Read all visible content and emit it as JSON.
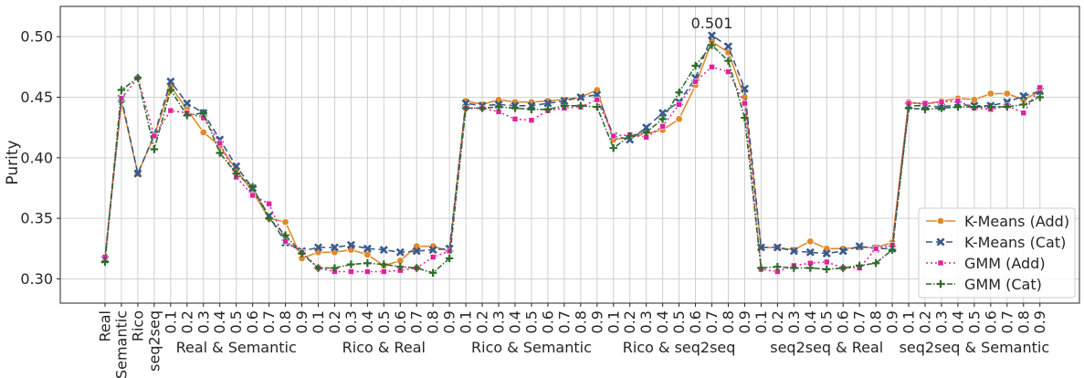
{
  "chart_data": {
    "type": "line",
    "ylabel": "Purity",
    "xlabel": "",
    "ylim": [
      0.28,
      0.525
    ],
    "yticks": [
      0.3,
      0.35,
      0.4,
      0.45,
      0.5
    ],
    "ytick_labels": [
      "0.30",
      "0.35",
      "0.40",
      "0.45",
      "0.50"
    ],
    "grid": true,
    "legend_position": "lower-right",
    "categories": [
      "Real",
      "Semantic",
      "Rico",
      "seq2seq",
      "0.1",
      "0.2",
      "0.3",
      "0.4",
      "0.5",
      "0.6",
      "0.7",
      "0.8",
      "0.9",
      "0.1",
      "0.2",
      "0.3",
      "0.4",
      "0.5",
      "0.6",
      "0.7",
      "0.8",
      "0.9",
      "0.1",
      "0.2",
      "0.3",
      "0.4",
      "0.5",
      "0.6",
      "0.7",
      "0.8",
      "0.9",
      "0.1",
      "0.2",
      "0.3",
      "0.4",
      "0.5",
      "0.6",
      "0.7",
      "0.8",
      "0.9",
      "0.1",
      "0.2",
      "0.3",
      "0.4",
      "0.5",
      "0.6",
      "0.7",
      "0.8",
      "0.9",
      "0.1",
      "0.2",
      "0.3",
      "0.4",
      "0.5",
      "0.6",
      "0.7",
      "0.8",
      "0.9"
    ],
    "group_labels": [
      {
        "label": "Real & Semantic",
        "start": 4,
        "end": 12
      },
      {
        "label": "Rico & Real",
        "start": 13,
        "end": 21
      },
      {
        "label": "Rico & Semantic",
        "start": 22,
        "end": 30
      },
      {
        "label": "Rico & seq2seq",
        "start": 31,
        "end": 39
      },
      {
        "label": "seq2seq & Real",
        "start": 40,
        "end": 48
      },
      {
        "label": "seq2seq & Semantic",
        "start": 49,
        "end": 57
      }
    ],
    "annotation": {
      "text": "0.501",
      "index": 37,
      "value": 0.501
    },
    "series": [
      {
        "name": "K-Means (Add)",
        "color": "#e08a2b",
        "marker": "circle",
        "dash": "",
        "values": [
          0.318,
          0.447,
          0.387,
          0.418,
          0.459,
          0.44,
          0.421,
          0.41,
          0.39,
          0.372,
          0.35,
          0.347,
          0.317,
          0.322,
          0.322,
          0.324,
          0.32,
          0.311,
          0.315,
          0.327,
          0.327,
          0.323,
          0.447,
          0.444,
          0.448,
          0.446,
          0.446,
          0.447,
          0.448,
          0.45,
          0.456,
          0.415,
          0.417,
          0.42,
          0.423,
          0.432,
          0.46,
          0.496,
          0.487,
          0.45,
          0.326,
          0.326,
          0.324,
          0.331,
          0.325,
          0.325,
          0.326,
          0.326,
          0.33,
          0.446,
          0.444,
          0.447,
          0.449,
          0.448,
          0.453,
          0.453,
          0.448,
          0.455
        ]
      },
      {
        "name": "K-Means (Cat)",
        "color": "#3a5a8c",
        "marker": "x",
        "dash": "7,4",
        "values": [
          0.316,
          0.449,
          0.387,
          0.419,
          0.463,
          0.445,
          0.437,
          0.415,
          0.393,
          0.375,
          0.352,
          0.33,
          0.323,
          0.326,
          0.326,
          0.328,
          0.325,
          0.324,
          0.322,
          0.323,
          0.324,
          0.325,
          0.445,
          0.443,
          0.444,
          0.443,
          0.443,
          0.445,
          0.447,
          0.45,
          0.452,
          0.418,
          0.415,
          0.425,
          0.437,
          0.446,
          0.466,
          0.501,
          0.492,
          0.457,
          0.326,
          0.326,
          0.323,
          0.322,
          0.321,
          0.323,
          0.327,
          0.325,
          0.325,
          0.443,
          0.443,
          0.442,
          0.444,
          0.443,
          0.443,
          0.446,
          0.451,
          0.455
        ]
      },
      {
        "name": "GMM (Add)",
        "color": "#e0239a",
        "marker": "square",
        "dash": "2,3",
        "values": [
          0.318,
          0.449,
          0.466,
          0.418,
          0.439,
          0.437,
          0.433,
          0.412,
          0.384,
          0.369,
          0.362,
          0.331,
          0.322,
          0.309,
          0.306,
          0.306,
          0.306,
          0.306,
          0.307,
          0.309,
          0.318,
          0.323,
          0.441,
          0.441,
          0.438,
          0.432,
          0.431,
          0.439,
          0.441,
          0.442,
          0.448,
          0.418,
          0.419,
          0.417,
          0.426,
          0.444,
          0.463,
          0.475,
          0.471,
          0.445,
          0.308,
          0.306,
          0.311,
          0.313,
          0.314,
          0.309,
          0.309,
          0.325,
          0.328,
          0.445,
          0.445,
          0.446,
          0.447,
          0.441,
          0.44,
          0.443,
          0.437,
          0.458
        ]
      },
      {
        "name": "GMM (Cat)",
        "color": "#2d6b2a",
        "marker": "plus",
        "dash": "6,2,1.5,2",
        "values": [
          0.314,
          0.456,
          0.466,
          0.407,
          0.456,
          0.435,
          0.437,
          0.404,
          0.387,
          0.376,
          0.35,
          0.336,
          0.321,
          0.309,
          0.309,
          0.312,
          0.313,
          0.312,
          0.31,
          0.309,
          0.305,
          0.317,
          0.441,
          0.441,
          0.442,
          0.441,
          0.44,
          0.44,
          0.443,
          0.443,
          0.442,
          0.408,
          0.418,
          0.421,
          0.432,
          0.454,
          0.476,
          0.493,
          0.48,
          0.433,
          0.309,
          0.31,
          0.309,
          0.309,
          0.308,
          0.309,
          0.311,
          0.313,
          0.324,
          0.441,
          0.44,
          0.441,
          0.442,
          0.442,
          0.442,
          0.442,
          0.444,
          0.45
        ]
      }
    ]
  }
}
